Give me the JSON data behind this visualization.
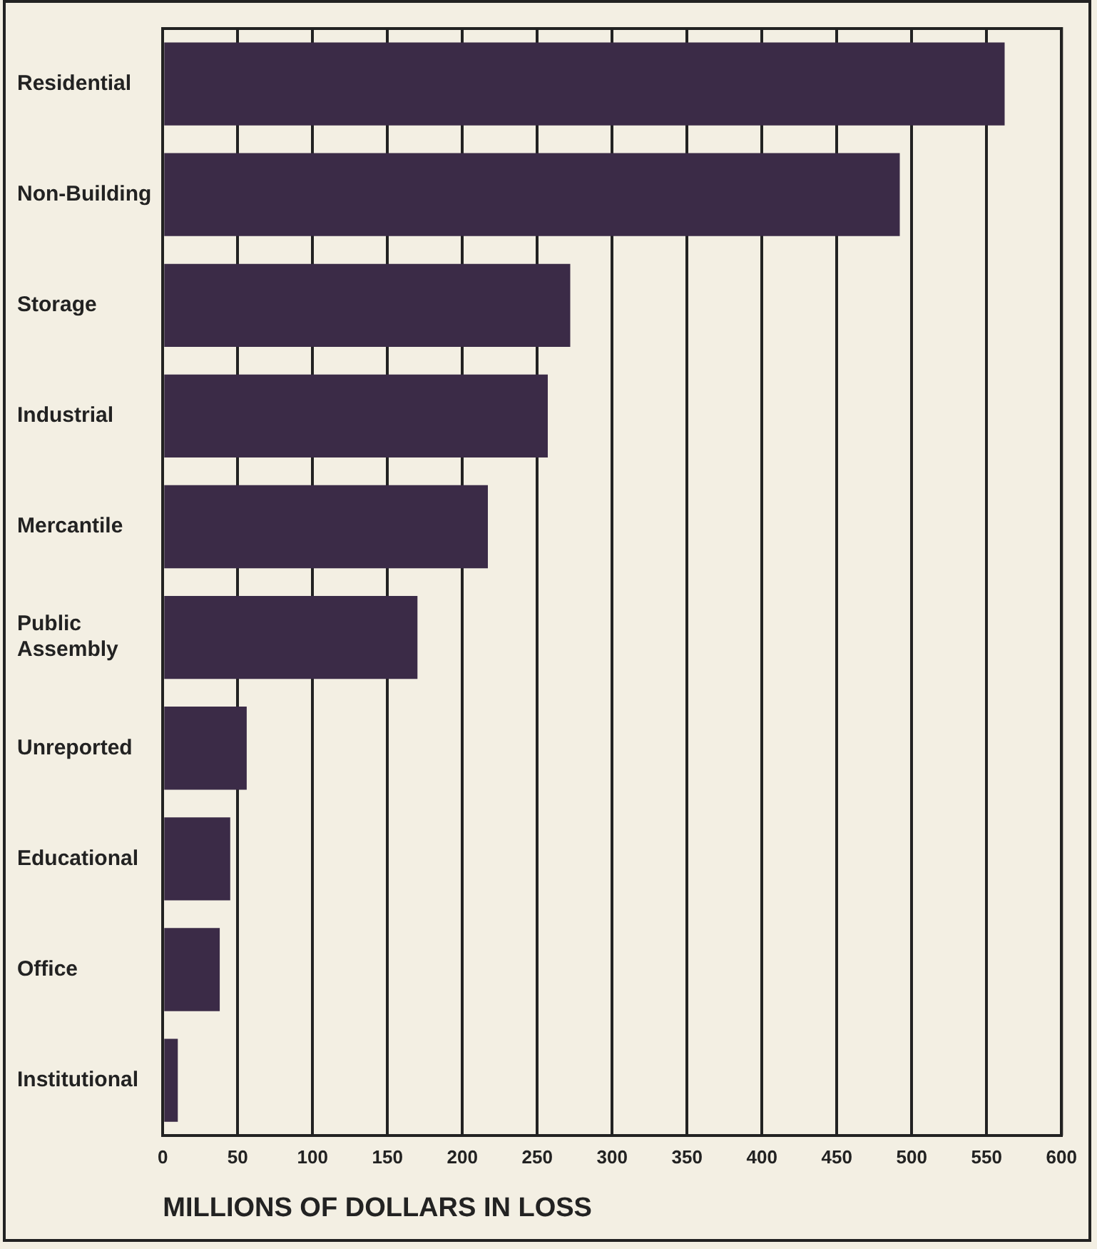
{
  "chart_data": {
    "type": "bar",
    "orientation": "horizontal",
    "xlabel": "MILLIONS OF DOLLARS IN LOSS",
    "categories": [
      "Residential",
      "Non-Building",
      "Storage",
      "Industrial",
      "Mercantile",
      "Public Assembly",
      "Unreported",
      "Educational",
      "Office",
      "Institutional"
    ],
    "values": [
      562,
      492,
      272,
      257,
      217,
      170,
      56,
      45,
      38,
      10
    ],
    "color": "#3b2b47",
    "xlim": [
      0,
      600
    ],
    "xticks": [
      0,
      50,
      100,
      150,
      200,
      250,
      300,
      350,
      400,
      450,
      500,
      550,
      600
    ],
    "grid": "x",
    "legend": false
  }
}
